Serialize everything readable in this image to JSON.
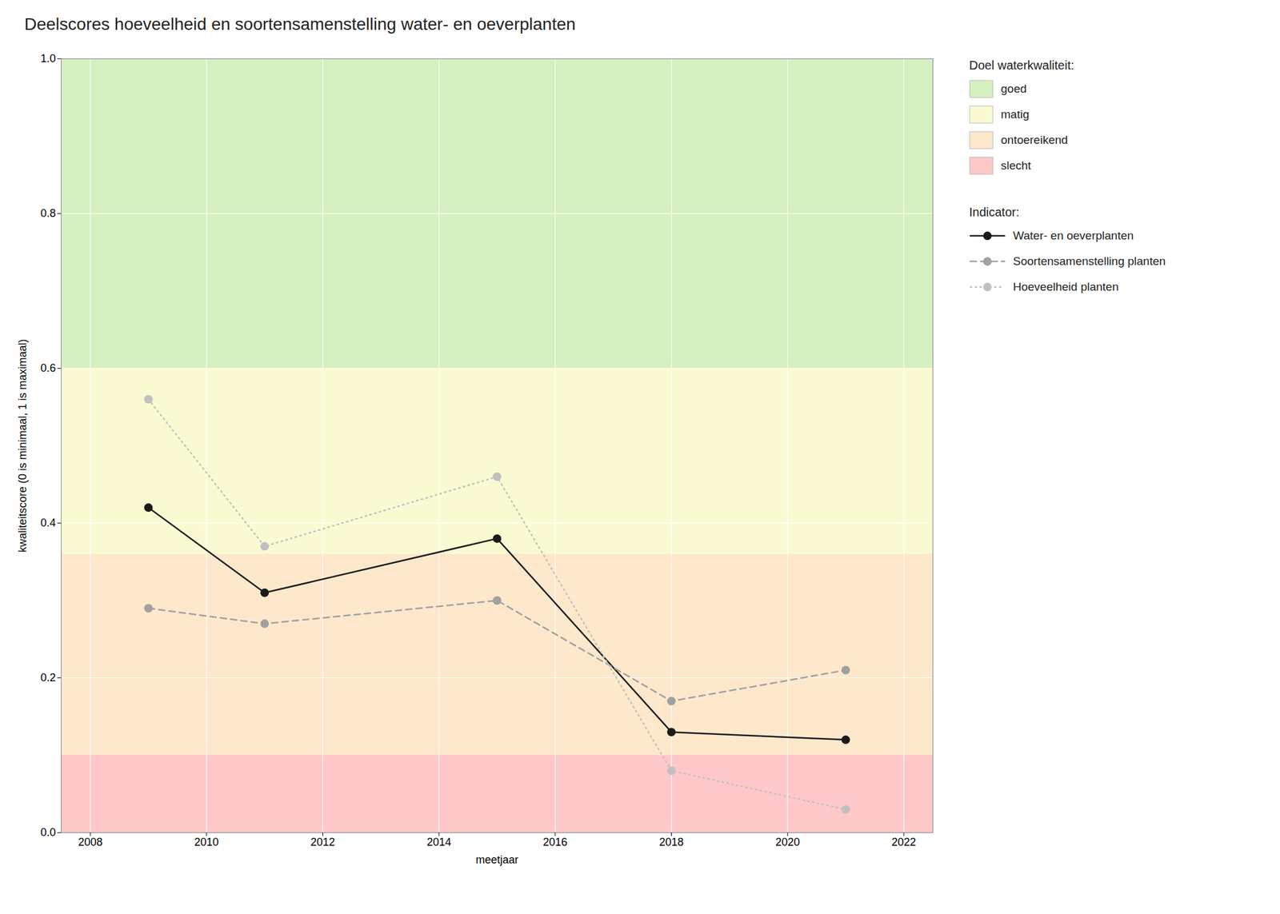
{
  "chart_data": {
    "type": "line",
    "title": "Deelscores hoeveelheid en soortensamenstelling water- en oeverplanten",
    "xlabel": "meetjaar",
    "ylabel": "kwaliteitscore (0 is minimaal, 1 is maximaal)",
    "x": [
      2009,
      2011,
      2015,
      2018,
      2021
    ],
    "xlim": [
      2007.5,
      2022.5
    ],
    "xticks": [
      2008,
      2010,
      2012,
      2014,
      2016,
      2018,
      2020,
      2022
    ],
    "ylim": [
      0.0,
      1.0
    ],
    "yticks": [
      {
        "value": 0.0,
        "label": "0.0"
      },
      0.2,
      0.4,
      0.6,
      0.8,
      {
        "value": 1.0,
        "label": "1.0"
      }
    ],
    "grid": true,
    "legend": "right",
    "bands_title": "Doel waterkwaliteit:",
    "bands": [
      {
        "label": "goed",
        "ymin": 0.6,
        "ymax": 1.0,
        "color": "#d5f0c1"
      },
      {
        "label": "matig",
        "ymin": 0.36,
        "ymax": 0.6,
        "color": "#fafad2"
      },
      {
        "label": "ontoereikend",
        "ymin": 0.1,
        "ymax": 0.36,
        "color": "#fde8cc"
      },
      {
        "label": "slecht",
        "ymin": 0.0,
        "ymax": 0.1,
        "color": "#ffc8c8"
      }
    ],
    "series_title": "Indicator:",
    "series": [
      {
        "name": "Water- en oeverplanten",
        "color": "#1a1a1a",
        "values": [
          0.42,
          0.31,
          0.38,
          0.13,
          0.12
        ],
        "line_style": "solid",
        "marker": "circle"
      },
      {
        "name": "Soortensamenstelling planten",
        "color": "#a0a0a0",
        "values": [
          0.29,
          0.27,
          0.3,
          0.17,
          0.21
        ],
        "line_style": "dashed",
        "marker": "circle"
      },
      {
        "name": "Hoeveelheid planten",
        "color": "#c0c0c0",
        "values": [
          0.56,
          0.37,
          0.46,
          0.08,
          0.03
        ],
        "line_style": "dotted",
        "marker": "circle"
      }
    ]
  }
}
